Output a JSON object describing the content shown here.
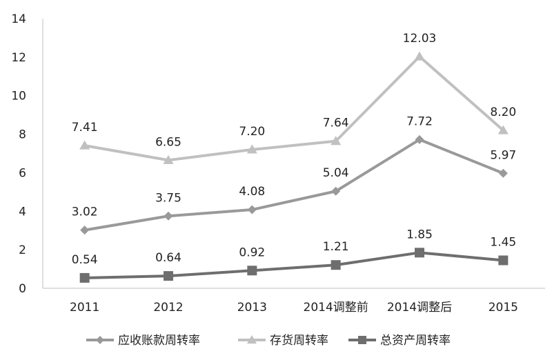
{
  "chart_data": {
    "type": "line",
    "categories": [
      "2011",
      "2012",
      "2013",
      "2014调整前",
      "2014调整后",
      "2015"
    ],
    "ylim": [
      0,
      14
    ],
    "yticks": [
      0,
      2,
      4,
      6,
      8,
      10,
      12,
      14
    ],
    "grid": false,
    "legend_position": "bottom",
    "series": [
      {
        "name": "应收账款周转率",
        "marker": "diamond",
        "color": "#999999",
        "values": [
          3.02,
          3.75,
          4.08,
          5.04,
          7.72,
          5.97
        ],
        "labels": [
          "3.02",
          "3.75",
          "4.08",
          "5.04",
          "7.72",
          "5.97"
        ]
      },
      {
        "name": "存货周转率",
        "marker": "triangle",
        "color": "#c0c0c0",
        "values": [
          7.41,
          6.65,
          7.2,
          7.64,
          12.03,
          8.2
        ],
        "labels": [
          "7.41",
          "6.65",
          "7.20",
          "7.64",
          "12.03",
          "8.20"
        ]
      },
      {
        "name": "总资产周转率",
        "marker": "square",
        "color": "#6e6e6e",
        "values": [
          0.54,
          0.64,
          0.92,
          1.21,
          1.85,
          1.45
        ],
        "labels": [
          "0.54",
          "0.64",
          "0.92",
          "1.21",
          "1.85",
          "1.45"
        ]
      }
    ]
  }
}
